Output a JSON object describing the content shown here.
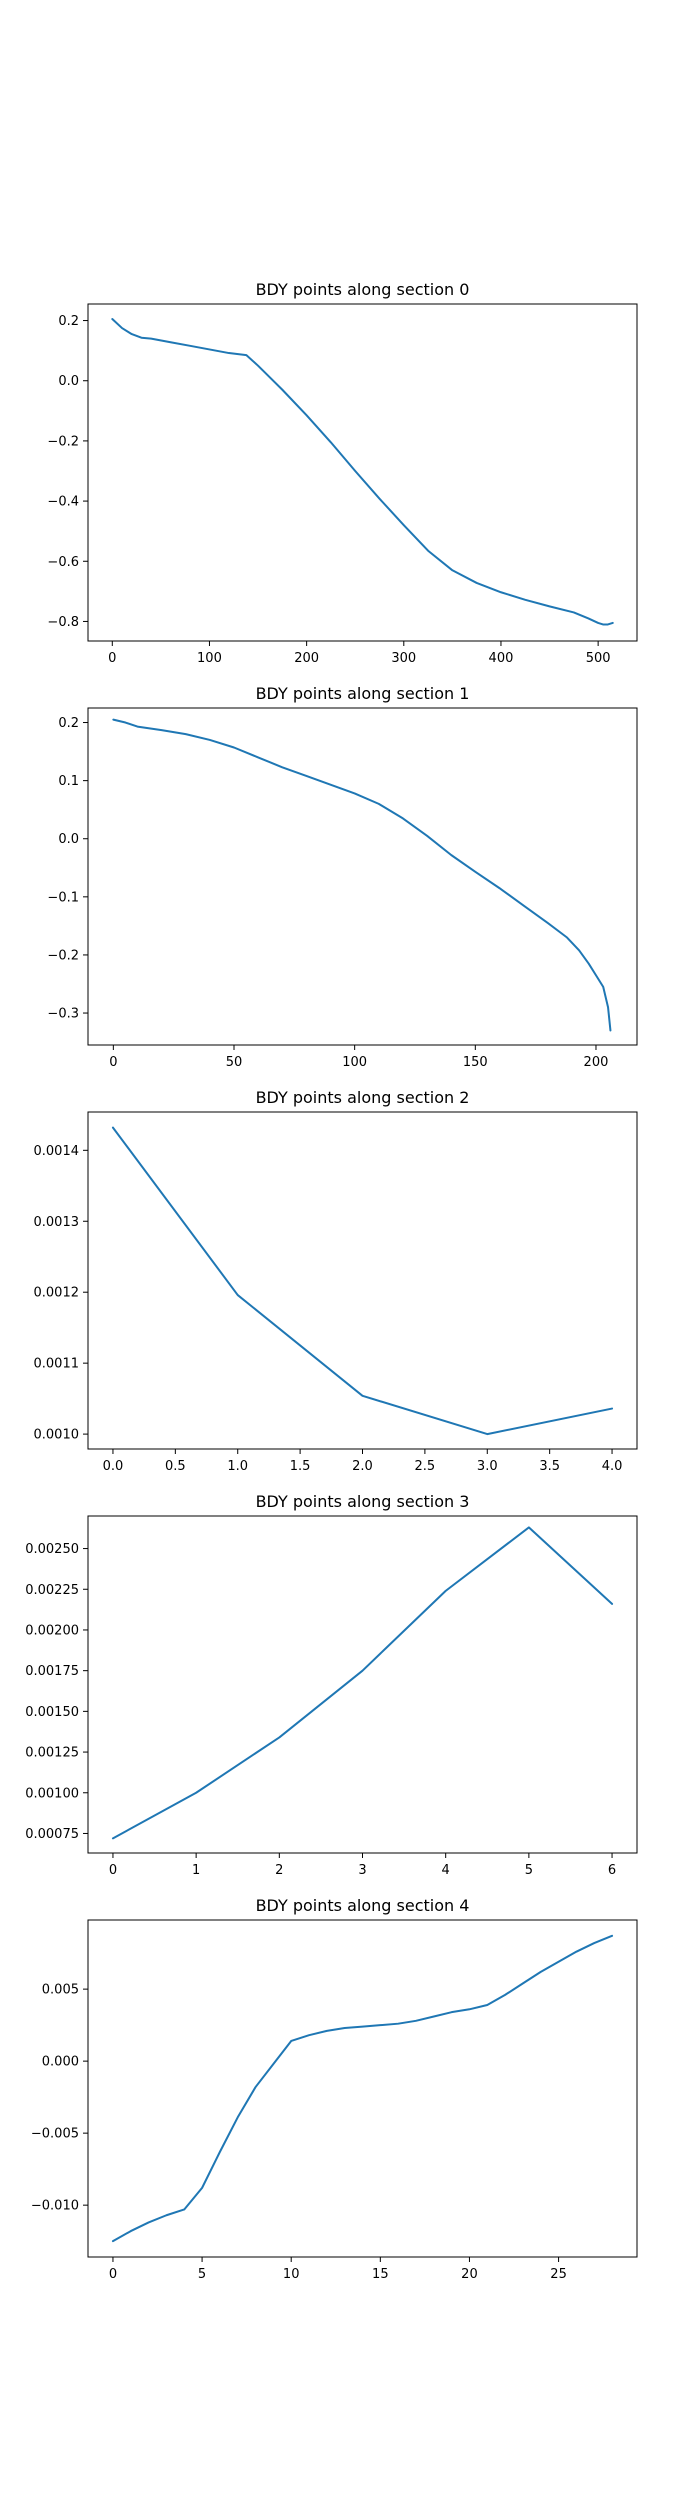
{
  "colors": {
    "line": "#1f77b4",
    "frame": "#000000"
  },
  "chart_data": [
    {
      "type": "line",
      "title": "BDY points along section 0",
      "xlabel": "",
      "ylabel": "",
      "xlim": [
        -25,
        540
      ],
      "ylim": [
        -0.865,
        0.255
      ],
      "xticks": [
        0,
        100,
        200,
        300,
        400,
        500
      ],
      "xtick_labels": [
        "0",
        "100",
        "200",
        "300",
        "400",
        "500"
      ],
      "yticks": [
        0.2,
        0.0,
        -0.2,
        -0.4,
        -0.6,
        -0.8
      ],
      "ytick_labels": [
        "0.2",
        "0.0",
        "−0.2",
        "−0.4",
        "−0.6",
        "−0.8"
      ],
      "grid": false,
      "series": [
        {
          "x": [
            0,
            10,
            20,
            30,
            40,
            60,
            80,
            100,
            120,
            138,
            150,
            175,
            200,
            225,
            250,
            275,
            300,
            325,
            350,
            375,
            400,
            425,
            450,
            475,
            490,
            500,
            505,
            510,
            515
          ],
          "y": [
            0.205,
            0.175,
            0.155,
            0.143,
            0.14,
            0.128,
            0.116,
            0.104,
            0.092,
            0.085,
            0.05,
            -0.03,
            -0.115,
            -0.205,
            -0.3,
            -0.392,
            -0.48,
            -0.565,
            -0.63,
            -0.672,
            -0.703,
            -0.728,
            -0.75,
            -0.77,
            -0.79,
            -0.805,
            -0.81,
            -0.81,
            -0.805
          ]
        }
      ]
    },
    {
      "type": "line",
      "title": "BDY points along section 1",
      "xlabel": "",
      "ylabel": "",
      "xlim": [
        -10.5,
        217
      ],
      "ylim": [
        -0.355,
        0.225
      ],
      "xticks": [
        0,
        50,
        100,
        150,
        200
      ],
      "xtick_labels": [
        "0",
        "50",
        "100",
        "150",
        "200"
      ],
      "yticks": [
        0.2,
        0.1,
        0.0,
        -0.1,
        -0.2,
        -0.3
      ],
      "ytick_labels": [
        "0.2",
        "0.1",
        "0.0",
        "−0.1",
        "−0.2",
        "−0.3"
      ],
      "grid": false,
      "series": [
        {
          "x": [
            0,
            5,
            10,
            20,
            30,
            40,
            50,
            60,
            70,
            80,
            90,
            100,
            110,
            120,
            130,
            140,
            150,
            160,
            170,
            180,
            188,
            193,
            197,
            200,
            203,
            205,
            206
          ],
          "y": [
            0.205,
            0.2,
            0.193,
            0.187,
            0.18,
            0.17,
            0.157,
            0.14,
            0.123,
            0.108,
            0.093,
            0.078,
            0.06,
            0.035,
            0.005,
            -0.028,
            -0.057,
            -0.085,
            -0.115,
            -0.145,
            -0.17,
            -0.192,
            -0.215,
            -0.235,
            -0.255,
            -0.29,
            -0.33
          ]
        }
      ]
    },
    {
      "type": "line",
      "title": "BDY points along section 2",
      "xlabel": "",
      "ylabel": "",
      "xlim": [
        -0.2,
        4.2
      ],
      "ylim": [
        0.000979,
        0.001454
      ],
      "xticks": [
        0,
        0.5,
        1,
        1.5,
        2,
        2.5,
        3,
        3.5,
        4
      ],
      "xtick_labels": [
        "0.0",
        "0.5",
        "1.0",
        "1.5",
        "2.0",
        "2.5",
        "3.0",
        "3.5",
        "4.0"
      ],
      "yticks": [
        0.0014,
        0.0013,
        0.0012,
        0.0011,
        0.001
      ],
      "ytick_labels": [
        "0.0014",
        "0.0013",
        "0.0012",
        "0.0011",
        "0.0010"
      ],
      "grid": false,
      "series": [
        {
          "x": [
            0,
            1,
            2,
            3,
            4
          ],
          "y": [
            0.001432,
            0.001196,
            0.001054,
            0.001,
            0.001036
          ]
        }
      ]
    },
    {
      "type": "line",
      "title": "BDY points along section 3",
      "xlabel": "",
      "ylabel": "",
      "xlim": [
        -0.3,
        6.3
      ],
      "ylim": [
        0.00063,
        0.0027
      ],
      "xticks": [
        0,
        1,
        2,
        3,
        4,
        5,
        6
      ],
      "xtick_labels": [
        "0",
        "1",
        "2",
        "3",
        "4",
        "5",
        "6"
      ],
      "yticks": [
        0.0025,
        0.00225,
        0.002,
        0.00175,
        0.0015,
        0.00125,
        0.001,
        0.00075
      ],
      "ytick_labels": [
        "0.00250",
        "0.00225",
        "0.00200",
        "0.00175",
        "0.00150",
        "0.00125",
        "0.00100",
        "0.00075"
      ],
      "grid": false,
      "series": [
        {
          "x": [
            0,
            1,
            2,
            3,
            4,
            5,
            6
          ],
          "y": [
            0.00072,
            0.001,
            0.00134,
            0.00175,
            0.00224,
            0.00263,
            0.00216
          ]
        }
      ]
    },
    {
      "type": "line",
      "title": "BDY points along section 4",
      "xlabel": "",
      "ylabel": "",
      "xlim": [
        -1.4,
        29.4
      ],
      "ylim": [
        -0.0136,
        0.0098
      ],
      "xticks": [
        0,
        5,
        10,
        15,
        20,
        25
      ],
      "xtick_labels": [
        "0",
        "5",
        "10",
        "15",
        "20",
        "25"
      ],
      "yticks": [
        0.005,
        0.0,
        -0.005,
        -0.01
      ],
      "ytick_labels": [
        "0.005",
        "0.000",
        "−0.005",
        "−0.010"
      ],
      "grid": false,
      "series": [
        {
          "x": [
            0,
            1,
            2,
            3,
            4,
            5,
            6,
            7,
            8,
            9,
            10,
            11,
            12,
            13,
            14,
            15,
            16,
            17,
            18,
            19,
            20,
            21,
            22,
            23,
            24,
            25,
            26,
            27,
            28
          ],
          "y": [
            -0.0125,
            -0.0118,
            -0.0112,
            -0.0107,
            -0.0103,
            -0.0088,
            -0.0063,
            -0.0039,
            -0.0018,
            -0.0002,
            0.0014,
            0.0018,
            0.0021,
            0.0023,
            0.0024,
            0.0025,
            0.0026,
            0.0028,
            0.0031,
            0.0034,
            0.0036,
            0.0039,
            0.0046,
            0.0054,
            0.0062,
            0.0069,
            0.0076,
            0.0082,
            0.0087
          ]
        }
      ]
    }
  ]
}
